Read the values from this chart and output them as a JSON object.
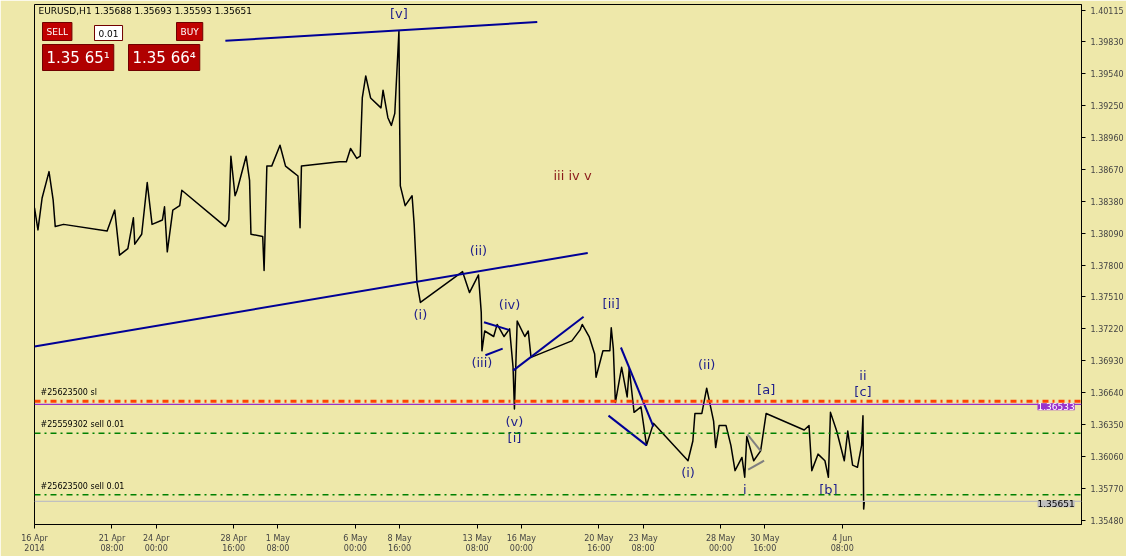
{
  "chart_data": {
    "type": "line",
    "title": "EURUSD,H1  1.35688 1.35693 1.35593 1.35651",
    "xlim": [
      "2014-04-16T16:00",
      "2014-06-18T18:00"
    ],
    "ylim": [
      1.3544,
      1.4017
    ],
    "xticks": [
      {
        "value": "2014-04-16T16:00",
        "label": "16 Apr 2014"
      },
      {
        "value": "2014-04-21T08:00",
        "label": "21 Apr 08:00"
      },
      {
        "value": "2014-04-24T00:00",
        "label": "24 Apr 00:00"
      },
      {
        "value": "2014-04-28T16:00",
        "label": "28 Apr 16:00"
      },
      {
        "value": "2014-05-01T08:00",
        "label": "1 May 08:00"
      },
      {
        "value": "2014-05-06T00:00",
        "label": "6 May 00:00"
      },
      {
        "value": "2014-05-08T16:00",
        "label": "8 May 16:00"
      },
      {
        "value": "2014-05-13T08:00",
        "label": "13 May 08:00"
      },
      {
        "value": "2014-05-16T00:00",
        "label": "16 May 00:00"
      },
      {
        "value": "2014-05-20T16:00",
        "label": "20 May 16:00"
      },
      {
        "value": "2014-05-23T08:00",
        "label": "23 May 08:00"
      },
      {
        "value": "2014-05-28T00:00",
        "label": "28 May 00:00"
      },
      {
        "value": "2014-05-30T16:00",
        "label": "30 May 16:00"
      },
      {
        "value": "2014-06-04T08:00",
        "label": "4 Jun 08:00"
      }
    ],
    "yticks": [
      {
        "value": 1.40115,
        "label": "1.40115"
      },
      {
        "value": 1.3983,
        "label": "1.39830"
      },
      {
        "value": 1.3954,
        "label": "1.39540"
      },
      {
        "value": 1.3925,
        "label": "1.39250"
      },
      {
        "value": 1.3896,
        "label": "1.38960"
      },
      {
        "value": 1.3867,
        "label": "1.38670"
      },
      {
        "value": 1.3838,
        "label": "1.38380"
      },
      {
        "value": 1.3809,
        "label": "1.38090"
      },
      {
        "value": 1.378,
        "label": "1.37800"
      },
      {
        "value": 1.3751,
        "label": "1.37510"
      },
      {
        "value": 1.3722,
        "label": "1.37220"
      },
      {
        "value": 1.3693,
        "label": "1.36930"
      },
      {
        "value": 1.3664,
        "label": "1.36640"
      },
      {
        "value": 1.3635,
        "label": "1.36350"
      },
      {
        "value": 1.3606,
        "label": "1.36060"
      },
      {
        "value": 1.3577,
        "label": "1.35770"
      },
      {
        "value": 1.3548,
        "label": "1.35480"
      }
    ],
    "grid": false,
    "series": [
      {
        "color": "#000000",
        "x": [
          "2014-04-16T16:00",
          "2014-04-16T21:00",
          "2014-04-17T03:00",
          "2014-04-17T13:00",
          "2014-04-17T19:00",
          "2014-04-17T22:00",
          "2014-04-18T10:00",
          "2014-04-21T01:00",
          "2014-04-21T12:00",
          "2014-04-21T19:00",
          "2014-04-22T07:00",
          "2014-04-22T15:00",
          "2014-04-22T17:00",
          "2014-04-23T03:00",
          "2014-04-23T11:00",
          "2014-04-23T18:00",
          "2014-04-24T09:00",
          "2014-04-24T12:00",
          "2014-04-24T16:00",
          "2014-04-25T00:00",
          "2014-04-25T10:00",
          "2014-04-25T13:00",
          "2014-04-28T04:00",
          "2014-04-28T09:00",
          "2014-04-28T12:00",
          "2014-04-28T18:00",
          "2014-04-28T21:00",
          "2014-04-29T10:00",
          "2014-04-29T15:00",
          "2014-04-29T17:00",
          "2014-04-30T10:00",
          "2014-04-30T12:00",
          "2014-04-30T16:00",
          "2014-04-30T23:00",
          "2014-05-01T11:00",
          "2014-05-01T19:00",
          "2014-05-02T05:00",
          "2014-05-02T13:00",
          "2014-05-02T16:00",
          "2014-05-02T18:00",
          "2014-05-05T01:00",
          "2014-05-05T11:00",
          "2014-05-05T17:00",
          "2014-05-06T02:00",
          "2014-05-06T07:00",
          "2014-05-06T10:00",
          "2014-05-06T15:00",
          "2014-05-06T22:00",
          "2014-05-07T13:00",
          "2014-05-07T16:00",
          "2014-05-07T23:00",
          "2014-05-08T04:00",
          "2014-05-08T09:00",
          "2014-05-08T15:00",
          "2014-05-08T16:00",
          "2014-05-08T17:00",
          "2014-05-09T00:00",
          "2014-05-09T10:00",
          "2014-05-09T13:00",
          "2014-05-09T17:00",
          "2014-05-09T22:00",
          "2014-05-12T11:00",
          "2014-05-12T21:00",
          "2014-05-13T10:00",
          "2014-05-13T14:00",
          "2014-05-13T15:00",
          "2014-05-13T19:00",
          "2014-05-14T08:00",
          "2014-05-14T13:00",
          "2014-05-14T23:00",
          "2014-05-15T07:00",
          "2014-05-15T12:00",
          "2014-05-15T14:00",
          "2014-05-15T18:00",
          "2014-05-16T05:00",
          "2014-05-16T10:00",
          "2014-05-16T14:00",
          "2014-05-19T01:00",
          "2014-05-19T13:00",
          "2014-05-19T16:00",
          "2014-05-20T02:00",
          "2014-05-20T10:00",
          "2014-05-20T12:00",
          "2014-05-20T22:00",
          "2014-05-21T08:00",
          "2014-05-21T10:00",
          "2014-05-21T13:00",
          "2014-05-21T16:00",
          "2014-05-22T01:00",
          "2014-05-22T09:00",
          "2014-05-22T12:00",
          "2014-05-22T19:00",
          "2014-05-23T05:00",
          "2014-05-23T13:00",
          "2014-05-23T23:00",
          "2014-05-26T01:00",
          "2014-05-26T08:00",
          "2014-05-26T11:00",
          "2014-05-26T21:00",
          "2014-05-27T04:00",
          "2014-05-27T14:00",
          "2014-05-27T17:00",
          "2014-05-27T22:00",
          "2014-05-28T08:00",
          "2014-05-28T15:00",
          "2014-05-28T21:00",
          "2014-05-29T07:00",
          "2014-05-29T11:00",
          "2014-05-29T14:00",
          "2014-05-30T00:00",
          "2014-05-30T10:00",
          "2014-05-30T18:00",
          "2014-06-02T01:00",
          "2014-06-02T08:00",
          "2014-06-02T12:00",
          "2014-06-02T21:00",
          "2014-06-03T07:00",
          "2014-06-03T12:00",
          "2014-06-03T15:00",
          "2014-06-04T00:00",
          "2014-06-04T11:00",
          "2014-06-04T16:00",
          "2014-06-04T23:00",
          "2014-06-05T06:00",
          "2014-06-05T12:00",
          "2014-06-05T14:00",
          "2014-06-05T15:00",
          "2014-06-05T16:00"
        ],
        "values": [
          1.3832,
          1.3812,
          1.3841,
          1.3865,
          1.3839,
          1.3815,
          1.3817,
          1.3811,
          1.383,
          1.3789,
          1.3795,
          1.3823,
          1.3799,
          1.3808,
          1.3855,
          1.3817,
          1.3821,
          1.3833,
          1.3792,
          1.383,
          1.3834,
          1.3848,
          1.3815,
          1.3821,
          1.3879,
          1.3843,
          1.3848,
          1.3879,
          1.3857,
          1.3808,
          1.3806,
          1.3775,
          1.387,
          1.387,
          1.3889,
          1.387,
          1.3865,
          1.3861,
          1.3814,
          1.387,
          1.3874,
          1.3874,
          1.3886,
          1.3877,
          1.3879,
          1.3932,
          1.3952,
          1.3932,
          1.3923,
          1.3939,
          1.3914,
          1.3907,
          1.3918,
          1.3993,
          1.3911,
          1.3852,
          1.3834,
          1.3843,
          1.3817,
          1.3764,
          1.3746,
          1.3774,
          1.3755,
          1.3771,
          1.3737,
          1.3702,
          1.372,
          1.3715,
          1.3726,
          1.3715,
          1.3722,
          1.3687,
          1.3649,
          1.3729,
          1.3715,
          1.372,
          1.3696,
          1.3711,
          1.3721,
          1.3726,
          1.3715,
          1.3699,
          1.3678,
          1.3702,
          1.3702,
          1.3723,
          1.3704,
          1.3655,
          1.3687,
          1.366,
          1.3686,
          1.3646,
          1.3651,
          1.3616,
          1.3636,
          1.3602,
          1.362,
          1.3645,
          1.3645,
          1.3668,
          1.3638,
          1.3614,
          1.3634,
          1.3634,
          1.3616,
          1.3593,
          1.3605,
          1.3587,
          1.3624,
          1.3602,
          1.3611,
          1.3645,
          1.363,
          1.3634,
          1.3593,
          1.3608,
          1.3602,
          1.3587,
          1.3646,
          1.3629,
          1.3602,
          1.3629,
          1.3598,
          1.3596,
          1.3616,
          1.3643,
          1.3558,
          1.3565
        ]
      },
      {
        "color": "#000096",
        "x": [
          "2014-04-28T04:00",
          "2014-05-16T23:00"
        ],
        "values": [
          1.3984,
          1.4001
        ]
      },
      {
        "color": "#000096",
        "x": [
          "2014-04-16T16:00",
          "2014-05-20T00:00"
        ],
        "values": [
          1.3706,
          1.3791
        ]
      },
      {
        "color": "#000096",
        "x": [
          "2014-05-13T18:00",
          "2014-05-15T06:00"
        ],
        "values": [
          1.3728,
          1.3721
        ]
      },
      {
        "color": "#000096",
        "x": [
          "2014-05-13T20:00",
          "2014-05-14T21:00"
        ],
        "values": [
          1.3698,
          1.3704
        ]
      },
      {
        "color": "#000096",
        "x": [
          "2014-05-15T12:00",
          "2014-05-19T18:00"
        ],
        "values": [
          1.3684,
          1.3733
        ]
      },
      {
        "color": "#000096",
        "x": [
          "2014-05-22T00:00",
          "2014-05-23T23:00"
        ],
        "values": [
          1.3705,
          1.3633
        ]
      },
      {
        "color": "#000096",
        "x": [
          "2014-05-21T06:00",
          "2014-05-23T13:00"
        ],
        "values": [
          1.3643,
          1.3616
        ]
      },
      {
        "color": "#808080",
        "x": [
          "2014-05-29T15:00",
          "2014-05-30T10:00"
        ],
        "values": [
          1.3626,
          1.3611
        ]
      },
      {
        "color": "#808080",
        "x": [
          "2014-05-29T16:00",
          "2014-05-30T15:00"
        ],
        "values": [
          1.3594,
          1.3602
        ]
      }
    ],
    "ref_lines": [
      {
        "axis": "y",
        "value": 1.3656,
        "label": "#25623500 sl",
        "color": "#ff4500",
        "line_style": "dashed"
      },
      {
        "axis": "y",
        "value": 1.3627,
        "label": "#25559302 sell 0.01",
        "color": "#008000",
        "line_style": "dashed"
      },
      {
        "axis": "y",
        "value": 1.3571,
        "label": "#25623500 sell 0.01",
        "color": "#008000",
        "line_style": "dashed"
      },
      {
        "axis": "y",
        "value": 1.36533,
        "label": "1.36533",
        "color": "#9932cc",
        "line_style": "solid"
      },
      {
        "axis": "y",
        "value": 1.35651,
        "label": "1.35651",
        "color": "#c0c0c0",
        "line_style": "solid"
      }
    ],
    "annotations": [
      "SELL",
      "0.01",
      "BUY",
      "1.35 65¹",
      "1.35 66⁴",
      "iii  iv v",
      {
        "text": "[v]",
        "x": "2014-05-08T15:00",
        "y": 1.3993
      },
      {
        "text": "(i)",
        "x": "2014-05-09T22:00",
        "y": 1.3746
      },
      {
        "text": "(ii)",
        "x": "2014-05-13T10:00",
        "y": 1.3771
      },
      {
        "text": "(iii)",
        "x": "2014-05-13T15:00",
        "y": 1.3702
      },
      {
        "text": "(iv)",
        "x": "2014-05-15T07:00",
        "y": 1.3722
      },
      {
        "text": "(v)",
        "x": "2014-05-15T14:00",
        "y": 1.3649
      },
      {
        "text": "[i]",
        "x": "2014-05-15T14:00",
        "y": 1.3649
      },
      {
        "text": "[ii]",
        "x": "2014-05-21T10:00",
        "y": 1.3723
      },
      {
        "text": "(ii)",
        "x": "2014-05-27T04:00",
        "y": 1.3668
      },
      {
        "text": "(i)",
        "x": "2014-05-26T01:00",
        "y": 1.3602
      },
      {
        "text": "[a]",
        "x": "2014-05-30T18:00",
        "y": 1.3645
      },
      {
        "text": "[c]",
        "x": "2014-06-05T14:00",
        "y": 1.3643
      },
      {
        "text": "ii",
        "x": "2014-06-05T14:00",
        "y": 1.3643
      },
      {
        "text": "[b]",
        "x": "2014-06-03T12:00",
        "y": 1.3587
      },
      {
        "text": "i",
        "x": "2014-05-29T11:00",
        "y": 1.3587
      }
    ]
  }
}
